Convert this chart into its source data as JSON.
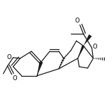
{
  "bg_color": "#ffffff",
  "line_color": "#1a1a1a",
  "lw": 0.9,
  "figsize": [
    1.58,
    1.55
  ],
  "dpi": 100,
  "xlim": [
    0,
    158
  ],
  "ylim": [
    0,
    155
  ]
}
